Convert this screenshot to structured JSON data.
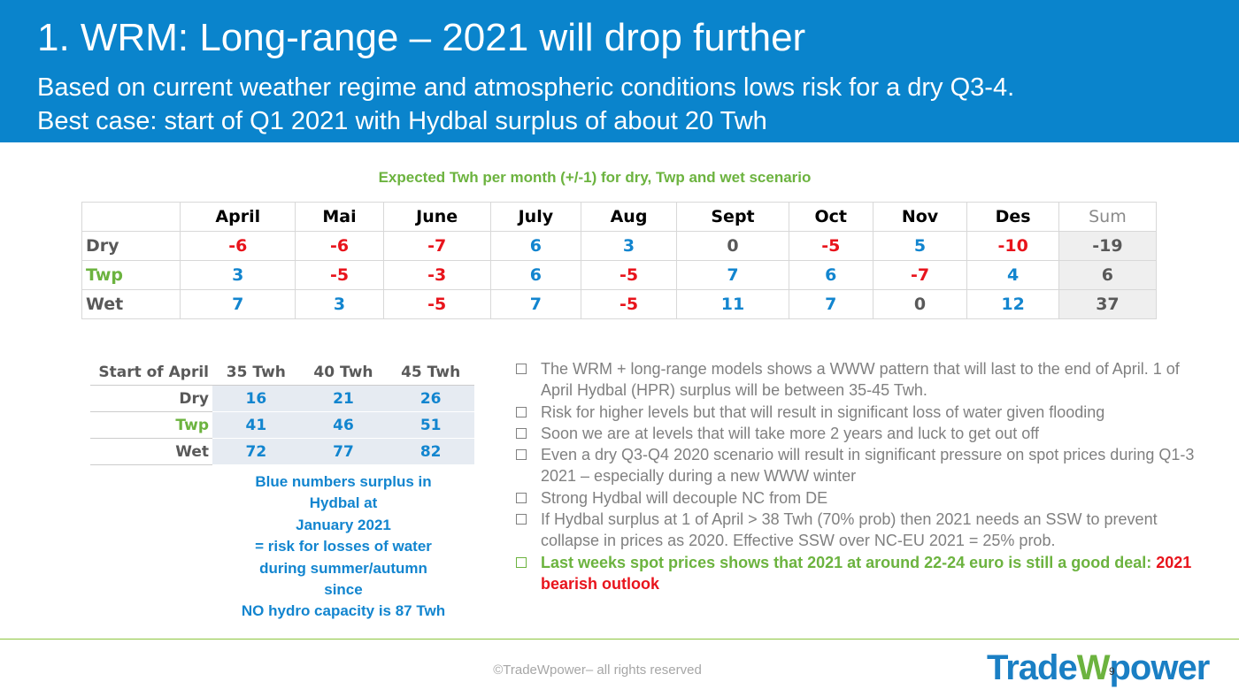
{
  "header": {
    "title": "1. WRM: Long-range – 2021 will drop further",
    "subtitle": [
      "Based on current weather regime and atmospheric conditions lows risk for a dry Q3-4.",
      "Best case: start of Q1 2021 with Hydbal surplus of about 20 Twh"
    ]
  },
  "table": {
    "caption": "Expected Twh per month (+/-1) for dry, Twp and wet scenario",
    "headers": [
      "April",
      "Mai",
      "June",
      "July",
      "Aug",
      "Sept",
      "Oct",
      "Nov",
      "Des",
      "Sum"
    ],
    "rows": [
      {
        "label": "Dry",
        "values": [
          -6,
          -6,
          -7,
          6,
          3,
          0,
          -5,
          5,
          -10,
          -19
        ]
      },
      {
        "label": "Twp",
        "values": [
          3,
          -5,
          -3,
          6,
          -5,
          7,
          6,
          -7,
          4,
          6
        ]
      },
      {
        "label": "Wet",
        "values": [
          7,
          3,
          -5,
          7,
          -5,
          11,
          7,
          0,
          12,
          37
        ]
      }
    ]
  },
  "start_table": {
    "headers": [
      "Start of April",
      "35 Twh",
      "40 Twh",
      "45 Twh"
    ],
    "rows": [
      {
        "label": "Dry",
        "values": [
          16,
          21,
          26
        ]
      },
      {
        "label": "Twp",
        "values": [
          41,
          46,
          51
        ]
      },
      {
        "label": "Wet",
        "values": [
          72,
          77,
          82
        ]
      }
    ]
  },
  "note": [
    "Blue numbers surplus in",
    "Hydbal at",
    "January 2021",
    "= risk for losses of water",
    "during summer/autumn",
    "since",
    "NO hydro capacity is 87 Twh"
  ],
  "bullets": [
    "The WRM + long-range models shows a WWW pattern that will last to the end of April. 1 of April Hydbal (HPR) surplus will be between 35-45 Twh.",
    "Risk for higher levels but that will result in significant loss of water given flooding",
    "Soon we are at levels that will take more 2 years and luck to get out off",
    "Even a dry Q3-Q4 2020 scenario will result in significant pressure on spot prices during Q1-3 2021 – especially during a new WWW winter",
    "Strong Hydbal will decouple NC from DE",
    "If Hydbal surplus at 1 of April > 38 Twh (70% prob) then 2021 needs an SSW to prevent collapse in prices as 2020. Effective SSW over NC-EU 2021 = 25% prob."
  ],
  "highlight_bullet": [
    "Last weeks spot prices shows that 2021 at around 22-24 euro is still a good deal:",
    "2021 bearish outlook"
  ],
  "footer": {
    "copyright": "©TradeWpower– all rights reserved",
    "logo": [
      "Trade",
      "W",
      "power"
    ],
    "page": "9"
  }
}
